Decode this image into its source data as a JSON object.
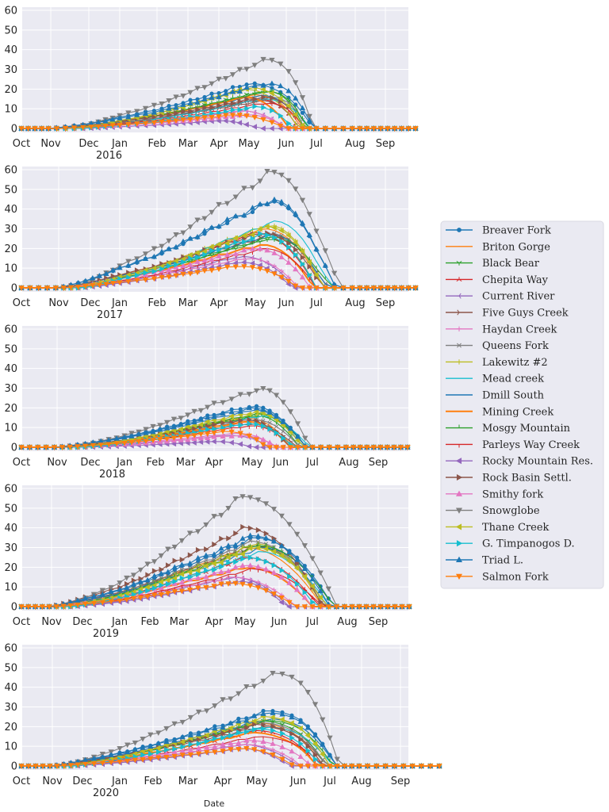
{
  "figure": {
    "xlabel": "Date"
  },
  "axis": {
    "ylim": [
      0,
      60
    ],
    "yticks": [
      "0",
      "10",
      "20",
      "30",
      "40",
      "50",
      "60"
    ]
  },
  "chart_data": [
    {
      "type": "line",
      "year": "2016",
      "months": [
        "Oct",
        "Nov",
        "Dec",
        "Jan",
        "Feb",
        "Mar",
        "Apr",
        "May",
        "Jun",
        "Jul",
        "Aug",
        "Sep"
      ],
      "peaks": [
        23,
        17,
        19,
        15,
        9,
        14,
        9,
        16,
        20,
        15,
        17,
        16,
        19,
        13,
        4,
        16,
        7,
        35,
        21,
        11,
        23,
        7
      ],
      "peak_at": [
        7.0,
        7.2,
        7.5,
        7.3,
        6.8,
        7.4,
        6.8,
        7.6,
        6.9,
        7.4,
        7.3,
        6.9,
        7.5,
        7.5,
        6.0,
        7.4,
        7.0,
        7.5,
        7.0,
        7.2,
        7.5,
        6.5
      ],
      "melt_end": [
        8.9,
        8.5,
        8.6,
        8.4,
        8.0,
        8.4,
        8.0,
        8.7,
        8.4,
        8.8,
        8.6,
        8.1,
        8.7,
        8.6,
        7.3,
        8.6,
        8.0,
        8.9,
        8.6,
        8.2,
        8.9,
        8.0
      ]
    },
    {
      "type": "line",
      "year": "2017",
      "months": [
        "Oct",
        "Nov",
        "Dec",
        "Jan",
        "Feb",
        "Mar",
        "Apr",
        "May",
        "Jun",
        "Jul",
        "Aug",
        "Sep"
      ],
      "peaks": [
        44,
        30,
        25,
        28,
        16,
        27,
        15,
        28,
        32,
        34,
        27,
        22,
        26,
        20,
        13,
        28,
        20,
        59,
        31,
        27,
        45,
        11
      ],
      "peak_at": [
        7.5,
        7.3,
        7.4,
        7.0,
        6.6,
        7.5,
        6.8,
        7.4,
        7.4,
        7.6,
        7.5,
        7.2,
        7.5,
        7.3,
        6.6,
        7.2,
        7.0,
        7.5,
        7.4,
        7.2,
        7.5,
        6.5
      ],
      "melt_end": [
        9.5,
        9.2,
        9.0,
        9.0,
        8.3,
        9.3,
        8.4,
        9.3,
        9.2,
        9.4,
        9.3,
        8.9,
        9.4,
        9.0,
        8.2,
        9.2,
        8.8,
        9.6,
        9.2,
        9.0,
        9.5,
        8.4
      ]
    },
    {
      "type": "line",
      "year": "2018",
      "months": [
        "Oct",
        "Nov",
        "Dec",
        "Jan",
        "Feb",
        "Mar",
        "Apr",
        "May",
        "Jun",
        "Jul",
        "Aug",
        "Sep"
      ],
      "peaks": [
        21,
        15,
        16,
        13,
        6,
        12,
        7,
        14,
        17,
        16,
        19,
        13,
        17,
        11,
        3,
        14,
        6,
        30,
        18,
        12,
        20,
        8
      ],
      "peak_at": [
        7.0,
        6.8,
        7.2,
        6.9,
        6.4,
        7.0,
        6.6,
        7.1,
        7.2,
        7.3,
        7.1,
        6.9,
        7.2,
        7.0,
        6.0,
        6.8,
        6.6,
        7.3,
        7.1,
        6.9,
        7.0,
        6.3
      ],
      "melt_end": [
        8.8,
        8.4,
        8.6,
        8.3,
        7.6,
        8.5,
        7.8,
        8.6,
        8.7,
        8.9,
        8.7,
        8.3,
        8.8,
        8.4,
        7.0,
        8.3,
        7.9,
        8.9,
        8.7,
        8.4,
        8.8,
        7.5
      ]
    },
    {
      "type": "line",
      "year": "2019",
      "months": [
        "Oct",
        "Nov",
        "Dec",
        "Jan",
        "Feb",
        "Mar",
        "Apr",
        "May",
        "Jun",
        "Jul",
        "Aug",
        "Sep"
      ],
      "peaks": [
        35,
        30,
        31,
        25,
        15,
        31,
        15,
        33,
        32,
        28,
        30,
        20,
        31,
        19,
        13,
        40,
        21,
        56,
        30,
        25,
        36,
        12
      ],
      "peak_at": [
        7.3,
        7.0,
        7.2,
        7.0,
        6.6,
        7.3,
        6.6,
        7.2,
        7.3,
        7.4,
        7.5,
        7.0,
        7.4,
        7.2,
        6.8,
        7.0,
        7.0,
        6.9,
        7.3,
        7.0,
        7.2,
        6.5
      ],
      "melt_end": [
        9.6,
        9.3,
        9.4,
        9.2,
        8.3,
        9.4,
        8.5,
        9.4,
        9.3,
        9.5,
        9.6,
        9.0,
        9.6,
        9.3,
        8.2,
        9.3,
        9.0,
        9.7,
        9.4,
        9.1,
        9.5,
        8.5
      ]
    },
    {
      "type": "line",
      "year": "2020",
      "months": [
        "Oct",
        "Nov",
        "Dec",
        "Jan",
        "Feb",
        "Mar",
        "Apr",
        "May",
        "Jun",
        "Jul",
        "Aug",
        "Sep"
      ],
      "peaks": [
        28,
        22,
        23,
        18,
        11,
        20,
        11,
        22,
        24,
        20,
        24,
        17,
        23,
        15,
        9,
        21,
        13,
        47,
        25,
        19,
        27,
        9
      ],
      "peak_at": [
        7.3,
        7.0,
        7.1,
        7.0,
        6.6,
        7.1,
        6.7,
        7.1,
        7.3,
        7.2,
        7.3,
        6.9,
        7.3,
        7.0,
        6.6,
        7.0,
        6.8,
        7.5,
        7.2,
        7.0,
        7.3,
        6.6
      ],
      "melt_end": [
        9.2,
        8.8,
        8.9,
        8.6,
        8.0,
        8.9,
        8.1,
        8.9,
        9.0,
        9.1,
        9.2,
        8.6,
        9.1,
        8.8,
        7.8,
        8.8,
        8.4,
        9.3,
        9.0,
        8.7,
        9.2,
        7.9
      ]
    }
  ],
  "legend": {
    "placement": "right",
    "entries": [
      {
        "name": "Breaver Fork",
        "color": "#1f77b4",
        "marker": "dot"
      },
      {
        "name": "Briton Gorge",
        "color": "#ff7f0e",
        "marker": "pixel"
      },
      {
        "name": "Black Bear",
        "color": "#2ca02c",
        "marker": "tri_down"
      },
      {
        "name": "Chepita Way",
        "color": "#d62728",
        "marker": "tri_up"
      },
      {
        "name": "Current River",
        "color": "#9467bd",
        "marker": "tri_left"
      },
      {
        "name": "Five Guys Creek",
        "color": "#8c564b",
        "marker": "tri_right"
      },
      {
        "name": "Haydan Creek",
        "color": "#e377c2",
        "marker": "plus"
      },
      {
        "name": "Queens Fork",
        "color": "#7f7f7f",
        "marker": "x"
      },
      {
        "name": "Lakewitz #2",
        "color": "#bcbd22",
        "marker": "vline"
      },
      {
        "name": "Mead creek",
        "color": "#17becf",
        "marker": "hline"
      },
      {
        "name": "Dmill South",
        "color": "#1f77b4",
        "marker": "none"
      },
      {
        "name": "Mining Creek",
        "color": "#ff7f0e",
        "marker": "thick"
      },
      {
        "name": "Mosgy Mountain",
        "color": "#2ca02c",
        "marker": "tickup"
      },
      {
        "name": "Parleys Way Creek",
        "color": "#d62728",
        "marker": "tickdown"
      },
      {
        "name": "Rocky Mountain Res.",
        "color": "#9467bd",
        "marker": "caretleft"
      },
      {
        "name": "Rock Basin Settl.",
        "color": "#8c564b",
        "marker": "caretright"
      },
      {
        "name": "Smithy fork",
        "color": "#e377c2",
        "marker": "caretup"
      },
      {
        "name": "Snowglobe",
        "color": "#7f7f7f",
        "marker": "caretdown"
      },
      {
        "name": "Thane Creek",
        "color": "#bcbd22",
        "marker": "caretleft"
      },
      {
        "name": "G. Timpanogos D.",
        "color": "#17becf",
        "marker": "caretright"
      },
      {
        "name": "Triad L.",
        "color": "#1f77b4",
        "marker": "caretup"
      },
      {
        "name": "Salmon Fork",
        "color": "#ff7f0e",
        "marker": "caretdown"
      }
    ]
  }
}
